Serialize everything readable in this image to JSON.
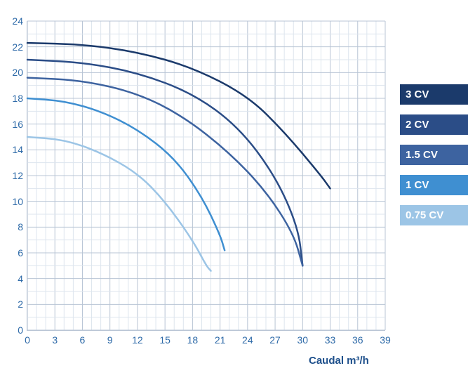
{
  "chart": {
    "type": "line",
    "xlim": [
      0,
      39
    ],
    "ylim": [
      0,
      24
    ],
    "xtick_labels": [
      "0",
      "3",
      "6",
      "9",
      "12",
      "15",
      "18",
      "21",
      "24",
      "27",
      "30",
      "33",
      "36",
      "39"
    ],
    "ytick_labels": [
      "0",
      "2",
      "4",
      "6",
      "8",
      "10",
      "12",
      "14",
      "16",
      "18",
      "20",
      "22",
      "24"
    ],
    "xlabel": "Caudal m³/h",
    "grid_major_color": "#b8c4d4",
    "grid_minor_color": "#dde5ee",
    "background_color": "#ffffff",
    "axis_label_color": "#2e6aa8",
    "xlabel_color": "#1d4f8b",
    "tick_fontsize": 14,
    "label_fontsize": 15,
    "line_width": 2.5,
    "series": [
      {
        "label": "3 CV",
        "color": "#1b3a6b",
        "points": [
          [
            0,
            22.3
          ],
          [
            6,
            22.2
          ],
          [
            12,
            21.6
          ],
          [
            18,
            20.4
          ],
          [
            24,
            18.2
          ],
          [
            28,
            15.4
          ],
          [
            32,
            12.0
          ],
          [
            33,
            11.0
          ]
        ]
      },
      {
        "label": "2 CV",
        "color": "#2b4d87",
        "points": [
          [
            0,
            21.0
          ],
          [
            6,
            20.8
          ],
          [
            12,
            20.0
          ],
          [
            18,
            18.4
          ],
          [
            23,
            15.8
          ],
          [
            27,
            12.0
          ],
          [
            29.5,
            8.0
          ],
          [
            30,
            5.0
          ]
        ]
      },
      {
        "label": "1.5 CV",
        "color": "#3d63a0",
        "points": [
          [
            0,
            19.6
          ],
          [
            6,
            19.4
          ],
          [
            12,
            18.4
          ],
          [
            17,
            16.6
          ],
          [
            22,
            13.8
          ],
          [
            26,
            10.8
          ],
          [
            29,
            7.5
          ],
          [
            30,
            5.0
          ]
        ]
      },
      {
        "label": "1 CV",
        "color": "#3f8fd1",
        "points": [
          [
            0,
            18.0
          ],
          [
            4,
            17.8
          ],
          [
            8,
            17.0
          ],
          [
            12,
            15.6
          ],
          [
            16,
            13.4
          ],
          [
            19,
            10.4
          ],
          [
            21,
            7.4
          ],
          [
            21.5,
            6.2
          ]
        ]
      },
      {
        "label": "0.75 CV",
        "color": "#9cc5e6",
        "points": [
          [
            0,
            15.0
          ],
          [
            4,
            14.8
          ],
          [
            8,
            13.8
          ],
          [
            12,
            12.2
          ],
          [
            15,
            10.0
          ],
          [
            18,
            7.0
          ],
          [
            19.5,
            5.0
          ],
          [
            20,
            4.6
          ]
        ]
      }
    ]
  },
  "legend": {
    "items": [
      {
        "label": "3 CV",
        "color": "#1b3a6b"
      },
      {
        "label": "2 CV",
        "color": "#2b4d87"
      },
      {
        "label": "1.5 CV",
        "color": "#3d63a0"
      },
      {
        "label": "1 CV",
        "color": "#3f8fd1"
      },
      {
        "label": "0.75 CV",
        "color": "#9cc5e6"
      }
    ]
  }
}
